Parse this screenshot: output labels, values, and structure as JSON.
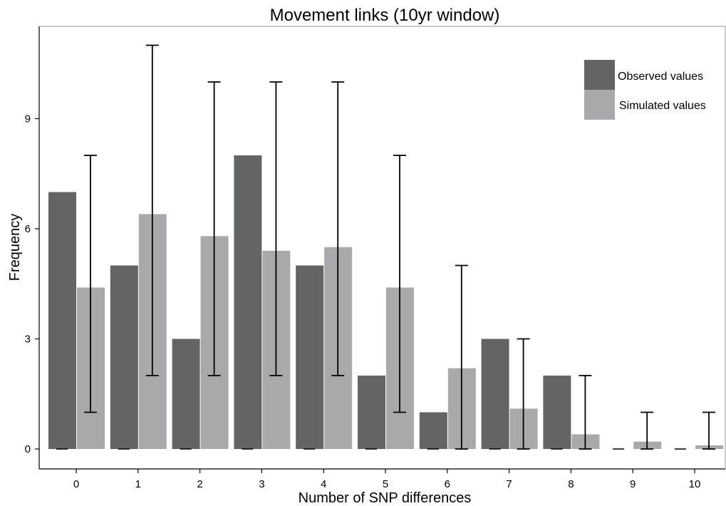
{
  "chart_data": {
    "type": "bar",
    "title": "Movement links (10yr window)",
    "xlabel": "Number of SNP differences",
    "ylabel": "Frequency",
    "categories": [
      "0",
      "1",
      "2",
      "3",
      "4",
      "5",
      "6",
      "7",
      "8",
      "9",
      "10"
    ],
    "ylim": [
      -0.5,
      11.5
    ],
    "yticks": [
      "0",
      "3",
      "6",
      "9"
    ],
    "ytick_values": [
      0,
      3,
      6,
      9
    ],
    "grid": false,
    "legend_position": "top-right",
    "series": [
      {
        "name": "Observed values",
        "color": "#636466",
        "values": [
          7,
          5,
          3,
          8,
          5,
          2,
          1,
          3,
          2,
          0,
          0
        ]
      },
      {
        "name": "Simulated values",
        "color": "#a8a9aa",
        "values": [
          4.4,
          6.4,
          5.8,
          5.4,
          5.5,
          4.4,
          2.2,
          1.1,
          0.4,
          0.2,
          0.1
        ],
        "error_low": [
          1,
          2,
          2,
          2,
          2,
          1,
          0,
          0,
          0,
          0,
          0
        ],
        "error_high": [
          8,
          11,
          10,
          10,
          10,
          8,
          5,
          3,
          2,
          1,
          1
        ]
      }
    ]
  }
}
